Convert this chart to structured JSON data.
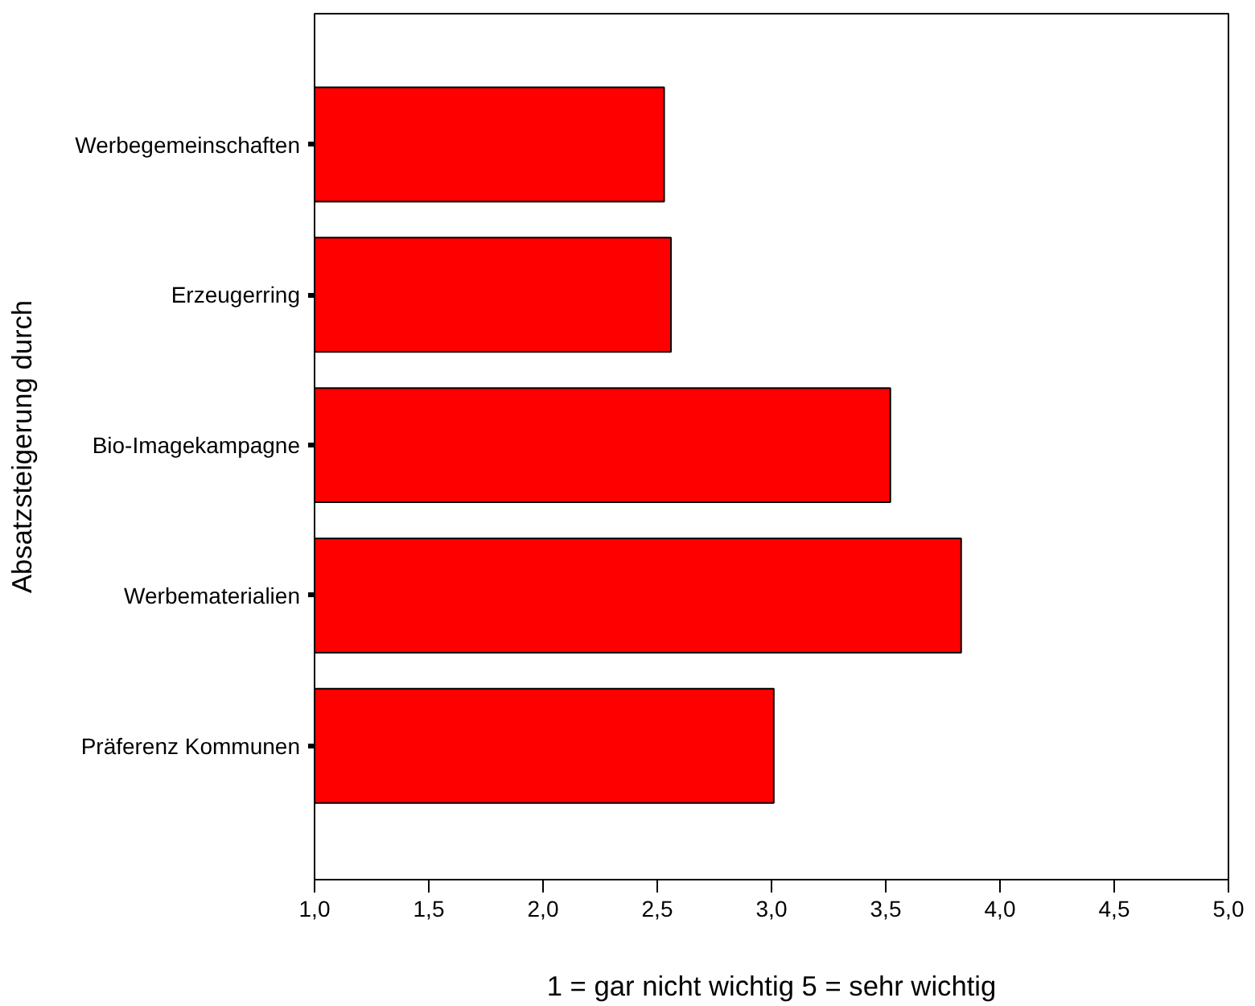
{
  "chart_data": {
    "type": "bar",
    "orientation": "horizontal",
    "xlabel": "1 = gar nicht wichtig 5 = sehr wichtig",
    "ylabel": "Absatzsteigerung durch",
    "categories": [
      "Werbegemeinschaften",
      "Erzeugerring",
      "Bio-Imagekampagne",
      "Werbematerialien",
      "Präferenz Kommunen"
    ],
    "values": [
      2.53,
      2.56,
      3.52,
      3.83,
      3.01
    ],
    "color": "#ff0000",
    "xlim": [
      1,
      5
    ],
    "xticks": [
      {
        "value": 1,
        "label": "1,0"
      },
      {
        "value": 1.5,
        "label": "1,5"
      },
      {
        "value": 2,
        "label": "2,0"
      },
      {
        "value": 2.5,
        "label": "2,5"
      },
      {
        "value": 3,
        "label": "3,0"
      },
      {
        "value": 3.5,
        "label": "3,5"
      },
      {
        "value": 4,
        "label": "4,0"
      },
      {
        "value": 4.5,
        "label": "4,5"
      },
      {
        "value": 5,
        "label": "5,0"
      }
    ],
    "grid": false
  }
}
